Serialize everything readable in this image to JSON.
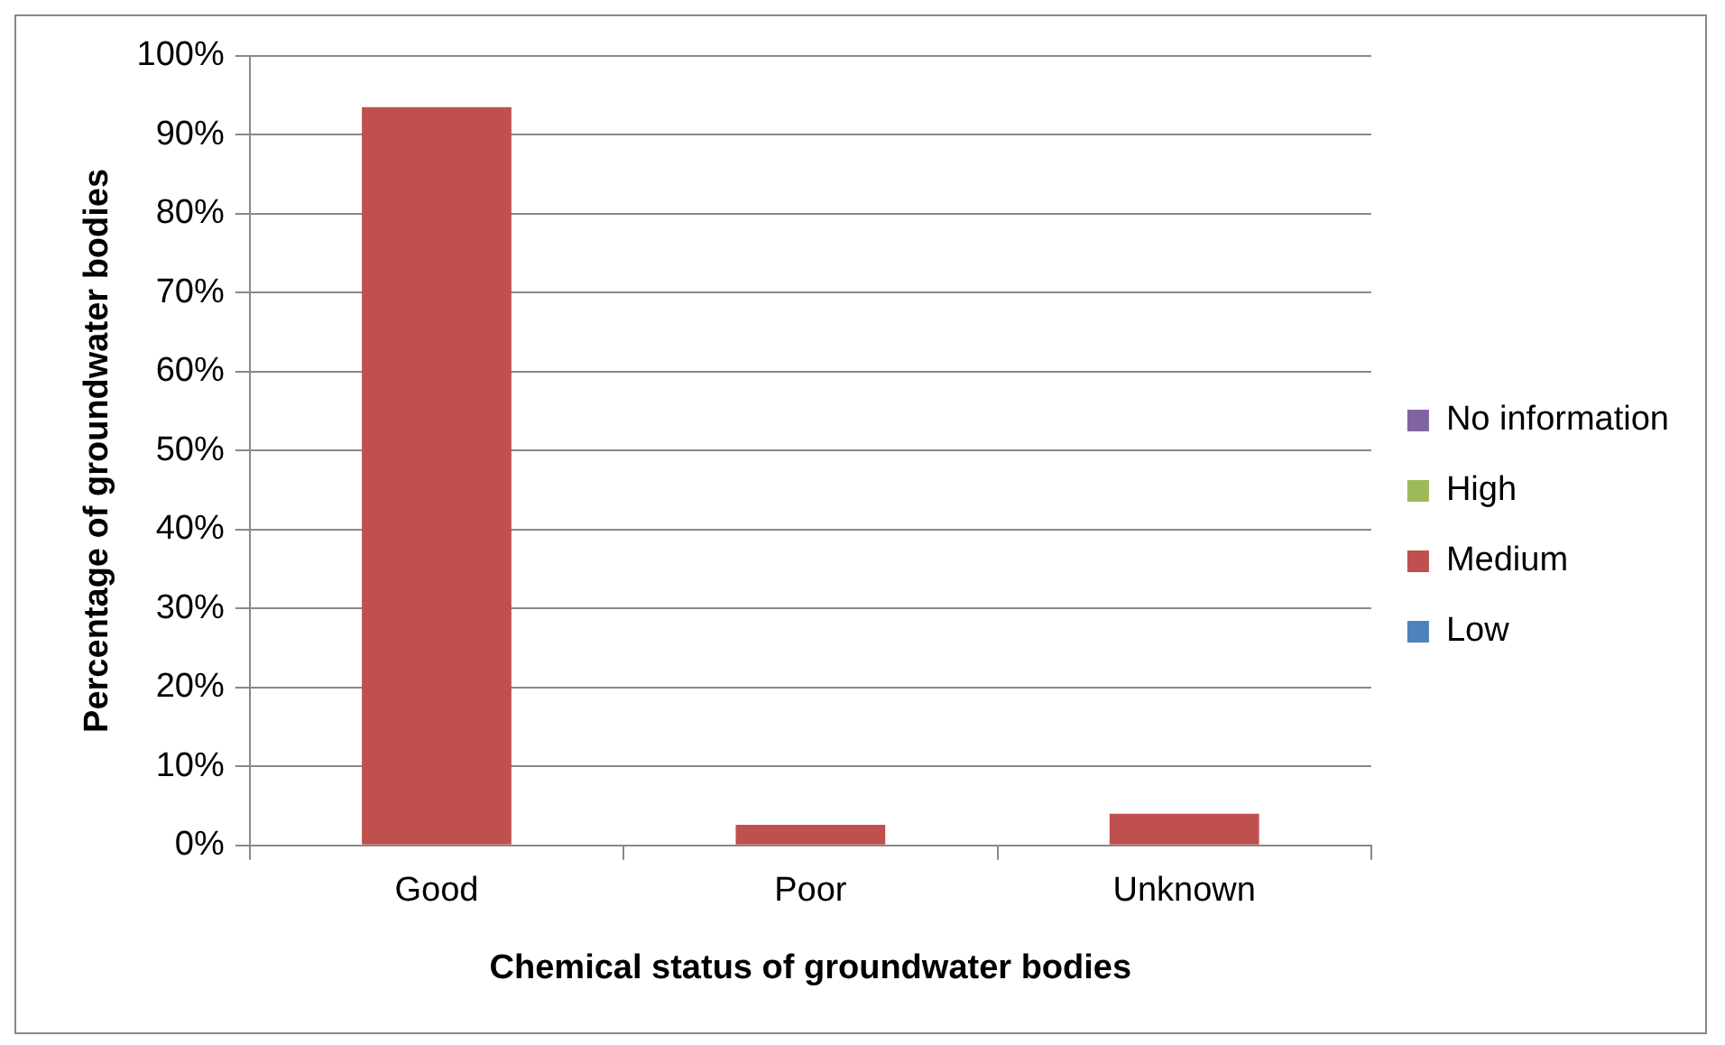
{
  "chart_data": {
    "type": "bar",
    "stacked": true,
    "xlabel": "Chemical status of groundwater bodies",
    "ylabel": "Percentage of groundwater bodies",
    "categories": [
      "Good",
      "Poor",
      "Unknown"
    ],
    "series": [
      {
        "name": "Low",
        "color": "#4f81bd",
        "values": [
          0,
          0,
          0
        ]
      },
      {
        "name": "Medium",
        "color": "#c0504d",
        "values": [
          93.5,
          2.6,
          4
        ]
      },
      {
        "name": "High",
        "color": "#9bbb59",
        "values": [
          0,
          0,
          0
        ]
      },
      {
        "name": "No information",
        "color": "#8064a2",
        "values": [
          0,
          0,
          0
        ]
      }
    ],
    "ylim": [
      0,
      100
    ],
    "yticks": [
      {
        "value": 0,
        "label": "0%"
      },
      {
        "value": 10,
        "label": "10%"
      },
      {
        "value": 20,
        "label": "20%"
      },
      {
        "value": 30,
        "label": "30%"
      },
      {
        "value": 40,
        "label": "40%"
      },
      {
        "value": 50,
        "label": "50%"
      },
      {
        "value": 60,
        "label": "60%"
      },
      {
        "value": 70,
        "label": "70%"
      },
      {
        "value": 80,
        "label": "80%"
      },
      {
        "value": 90,
        "label": "90%"
      },
      {
        "value": 100,
        "label": "100%"
      }
    ],
    "grid": "y",
    "legend": "right"
  }
}
